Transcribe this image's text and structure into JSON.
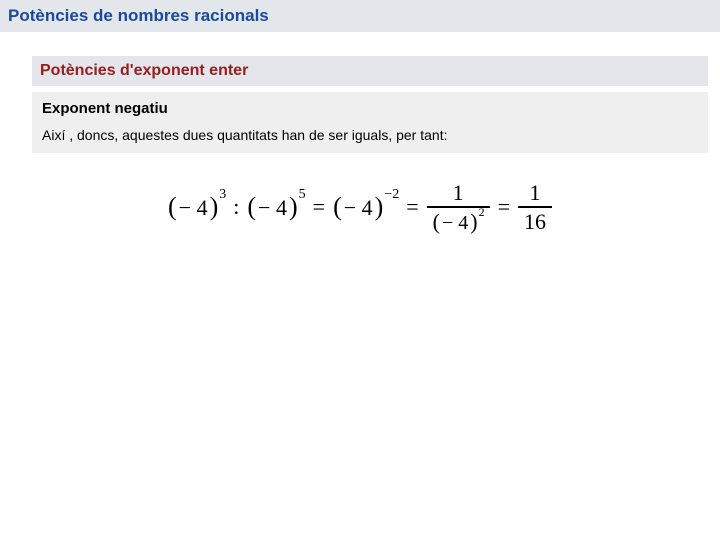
{
  "colors": {
    "title_bar_bg": "#e3e6ea",
    "title_text": "#1a4aa0",
    "section_text": "#9b1c1c",
    "sub_bg": "#efefef",
    "body_text": "#000000",
    "page_bg": "#ffffff"
  },
  "typography": {
    "title_fontsize_pt": 13,
    "section_fontsize_pt": 12,
    "subheading_fontsize_pt": 11,
    "body_fontsize_pt": 10,
    "formula_fontsize_pt": 16,
    "formula_font_family": "Times New Roman"
  },
  "page_title": "Potències de nombres racionals",
  "section_title": "Potències d'exponent enter",
  "sub_heading": "Exponent negatiu",
  "body_text": "Així , doncs, aquestes dues quantitats han de ser iguals, per tant:",
  "formula": {
    "type": "expression",
    "lhs1": {
      "base": "− 4",
      "exp": "3"
    },
    "div_op": ":",
    "lhs2": {
      "base": "− 4",
      "exp": "5"
    },
    "rhs1": {
      "base": "− 4",
      "exp": "−2"
    },
    "rhs2": {
      "num": "1",
      "den_base": "− 4",
      "den_exp": "2"
    },
    "rhs3": {
      "num": "1",
      "den": "16"
    },
    "eq": "="
  }
}
